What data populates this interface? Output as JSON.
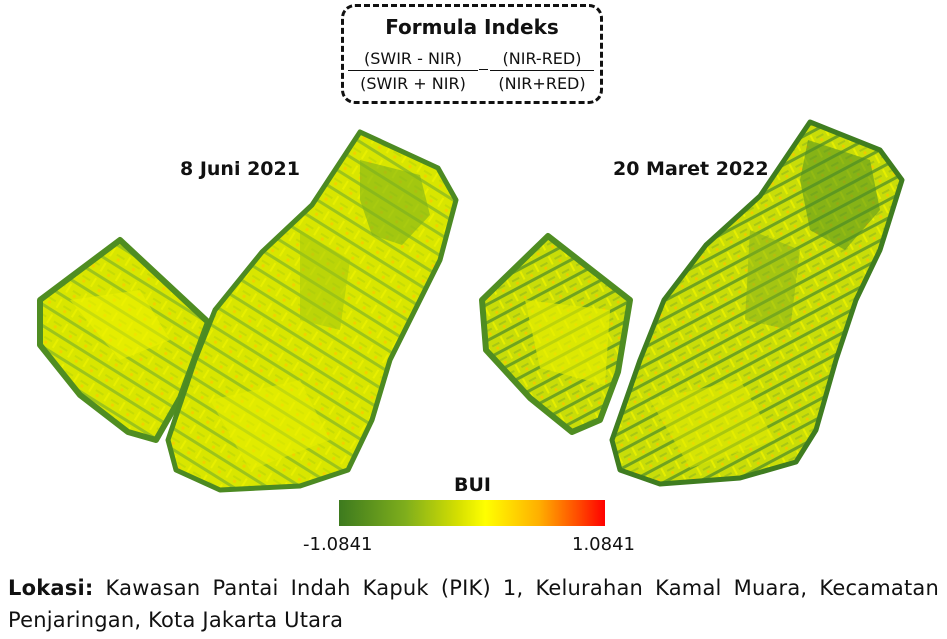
{
  "formula": {
    "title": "Formula Indeks",
    "term1_numerator": "(SWIR - NIR)",
    "term1_denominator": "(SWIR + NIR)",
    "term2_numerator": "(NIR-RED)",
    "term2_denominator": "(NIR+RED)"
  },
  "maps": [
    {
      "date": "8 Juni 2021"
    },
    {
      "date": "20 Maret 2022"
    }
  ],
  "legend": {
    "title": "BUI",
    "min": "-1.0841",
    "max": "1.0841",
    "colors": [
      "#3d7a1e",
      "#d6e000",
      "#ffff00",
      "#ff0000"
    ]
  },
  "location": {
    "label": "Lokasi:",
    "text": "Kawasan Pantai Indah Kapuk (PIK) 1, Kelurahan Kamal Muara, Kecamatan Penjaringan, Kota Jakarta Utara"
  }
}
